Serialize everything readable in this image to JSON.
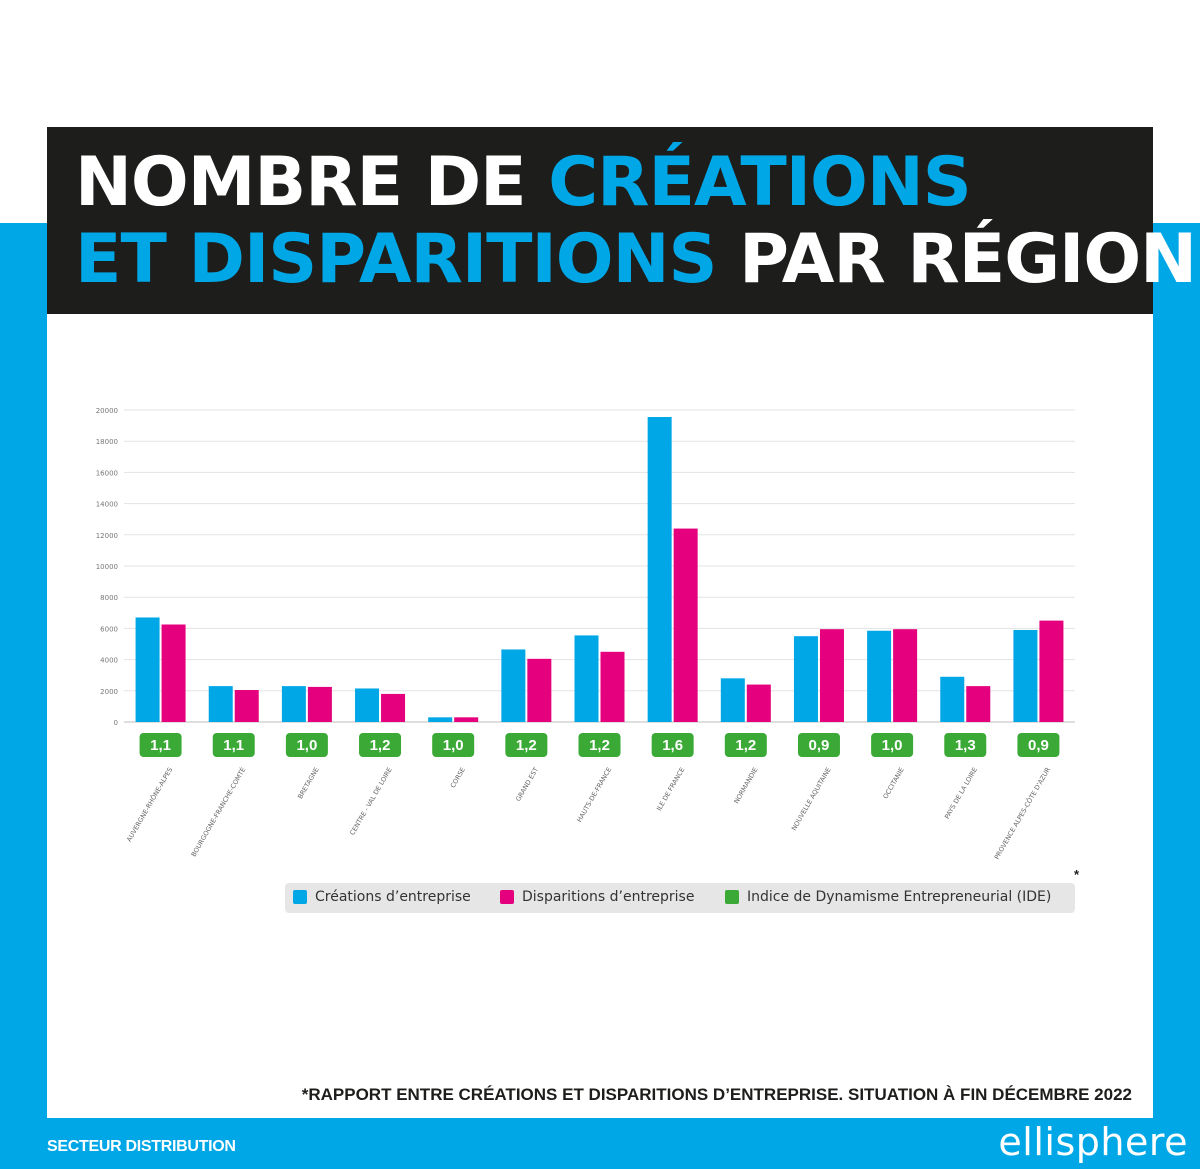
{
  "title": {
    "line1_part1": "NOMBRE DE ",
    "line1_accent": "CRÉATIONS",
    "line2_accent": "ET DISPARITIONS",
    "line2_part2": " PAR RÉGION"
  },
  "footnote": "*RAPPORT ENTRE CRÉATIONS ET DISPARITIONS D’ENTREPRISE. SITUATION À FIN DÉCEMBRE 2022",
  "footer": {
    "left_label": "SECTEUR DISTRIBUTION",
    "brand": "ellisphere"
  },
  "colors": {
    "background_band": "#00a7e7",
    "title_bg": "#1d1d1b",
    "creations": "#00a7e7",
    "disparitions": "#e5007e",
    "ide": "#3aa935"
  },
  "legend": {
    "asterisk": "*",
    "items": [
      {
        "label": "Créations d’entreprise",
        "color": "#00a7e7"
      },
      {
        "label": "Disparitions d’entreprise",
        "color": "#e5007e"
      },
      {
        "label": "Indice de Dynamisme Entrepreneurial (IDE)",
        "color": "#3aa935"
      }
    ]
  },
  "chart_data": {
    "type": "bar",
    "categories": [
      "AUVERGNE-RHÔNE-ALPES",
      "BOURGOGNE-FRANCHE-COMTÉ",
      "BRETAGNE",
      "CENTRE - VAL DE LOIRE",
      "CORSE",
      "GRAND EST",
      "HAUTS-DE-FRANCE",
      "ILE DE FRANCE",
      "NORMANDIE",
      "NOUVELLE AQUITAINE",
      "OCCITANIE",
      "PAYS DE LA LOIRE",
      "PROVENCE ALPES-CÔTE D'AZUR"
    ],
    "series": [
      {
        "name": "Créations d’entreprise",
        "color": "#00a7e7",
        "values": [
          6700,
          2300,
          2300,
          2150,
          300,
          4650,
          5550,
          19550,
          2800,
          5500,
          5850,
          2900,
          5900
        ]
      },
      {
        "name": "Disparitions d’entreprise",
        "color": "#e5007e",
        "values": [
          6250,
          2050,
          2250,
          1800,
          300,
          4050,
          4500,
          12400,
          2400,
          5950,
          5950,
          2300,
          6500
        ]
      }
    ],
    "ide_labels": [
      "1,1",
      "1,1",
      "1,0",
      "1,2",
      "1,0",
      "1,2",
      "1,2",
      "1,6",
      "1,2",
      "0,9",
      "1,0",
      "1,3",
      "0,9"
    ],
    "yticks": [
      "0",
      "2000",
      "4000",
      "6000",
      "8000",
      "10000",
      "12000",
      "14000",
      "16000",
      "18000",
      "20000"
    ],
    "ylim": [
      0,
      20000
    ],
    "grid": true,
    "legend_position": "bottom"
  }
}
